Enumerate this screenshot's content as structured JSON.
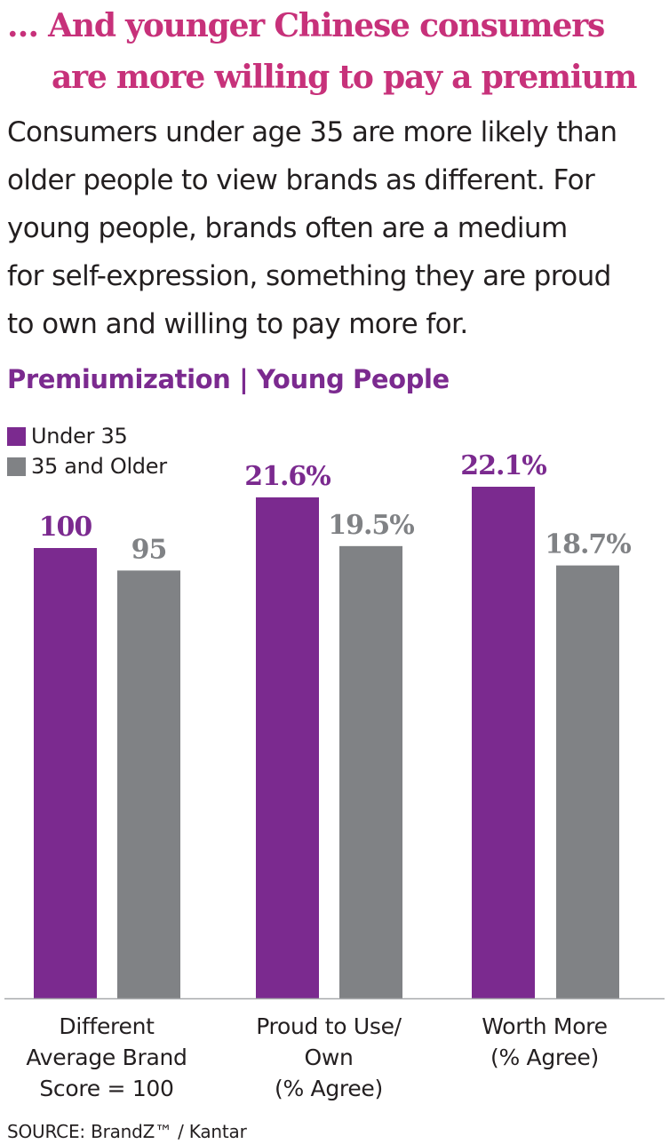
{
  "headline": {
    "line1": "… And younger Chinese consumers",
    "line2": "are more willing to pay a premium"
  },
  "intro": {
    "lines": [
      "Consumers under age 35 are more likely than",
      "older people to view brands as different. For",
      "young people, brands often are a medium",
      "for self-expression, something they are proud",
      "to own and willing to pay more for."
    ]
  },
  "chart_data": {
    "type": "bar",
    "title": "Premiumization | Young People",
    "legend_position": "top-left",
    "grid": false,
    "categories": [
      [
        "Different",
        "Average Brand",
        "Score = 100"
      ],
      [
        "Proud to Use/",
        "Own",
        "(% Agree)"
      ],
      [
        "Worth More",
        "(% Agree)"
      ]
    ],
    "series": [
      {
        "name": "Under 35",
        "color": "#7b2a8f",
        "values": [
          100,
          21.6,
          22.1
        ],
        "labels": [
          "100",
          "21.6%",
          "22.1%"
        ]
      },
      {
        "name": "35 and Older",
        "color": "#808285",
        "values": [
          95,
          19.5,
          18.7
        ],
        "labels": [
          "95",
          "19.5%",
          "18.7%"
        ]
      }
    ]
  },
  "source": "SOURCE: BrandZ™ / Kantar"
}
